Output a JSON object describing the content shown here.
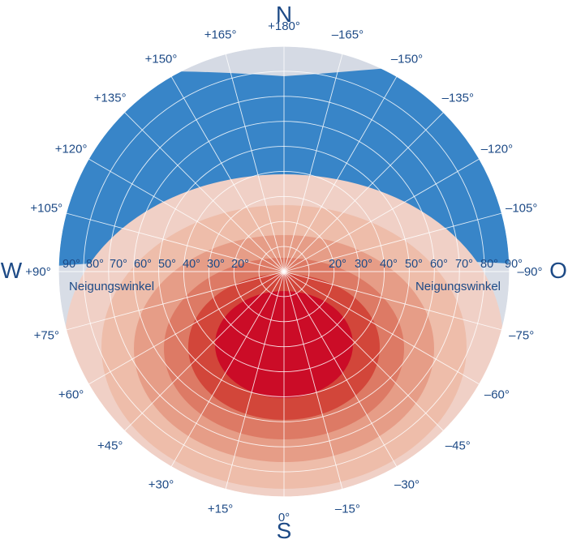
{
  "cardinals": {
    "north": "N",
    "south": "S",
    "west": "W",
    "east": "O"
  },
  "azimuth_labels": [
    "0°",
    "+15°",
    "+30°",
    "+45°",
    "+60°",
    "+75°",
    "+90°",
    "+105°",
    "+120°",
    "+135°",
    "+150°",
    "+165°",
    "+180°",
    "–165°",
    "–150°",
    "–135°",
    "–120°",
    "–105°",
    "–90°",
    "–75°",
    "–60°",
    "–45°",
    "–30°",
    "–15°"
  ],
  "tilt_labels_left": [
    "90°",
    "80°",
    "70°",
    "60°",
    "50°",
    "40°",
    "30°",
    "20°"
  ],
  "tilt_labels_right": [
    "20°",
    "30°",
    "40°",
    "50°",
    "60°",
    "70°",
    "80°",
    "90°"
  ],
  "tilt_axis_title_left": "Neigungswinkel",
  "tilt_axis_title_right": "Neigungswinkel",
  "colors": {
    "text": "#1d4a86",
    "grid": "#ffffff",
    "max_red": "#cb0c27",
    "deep_blue": "#0d6fbb"
  }
}
